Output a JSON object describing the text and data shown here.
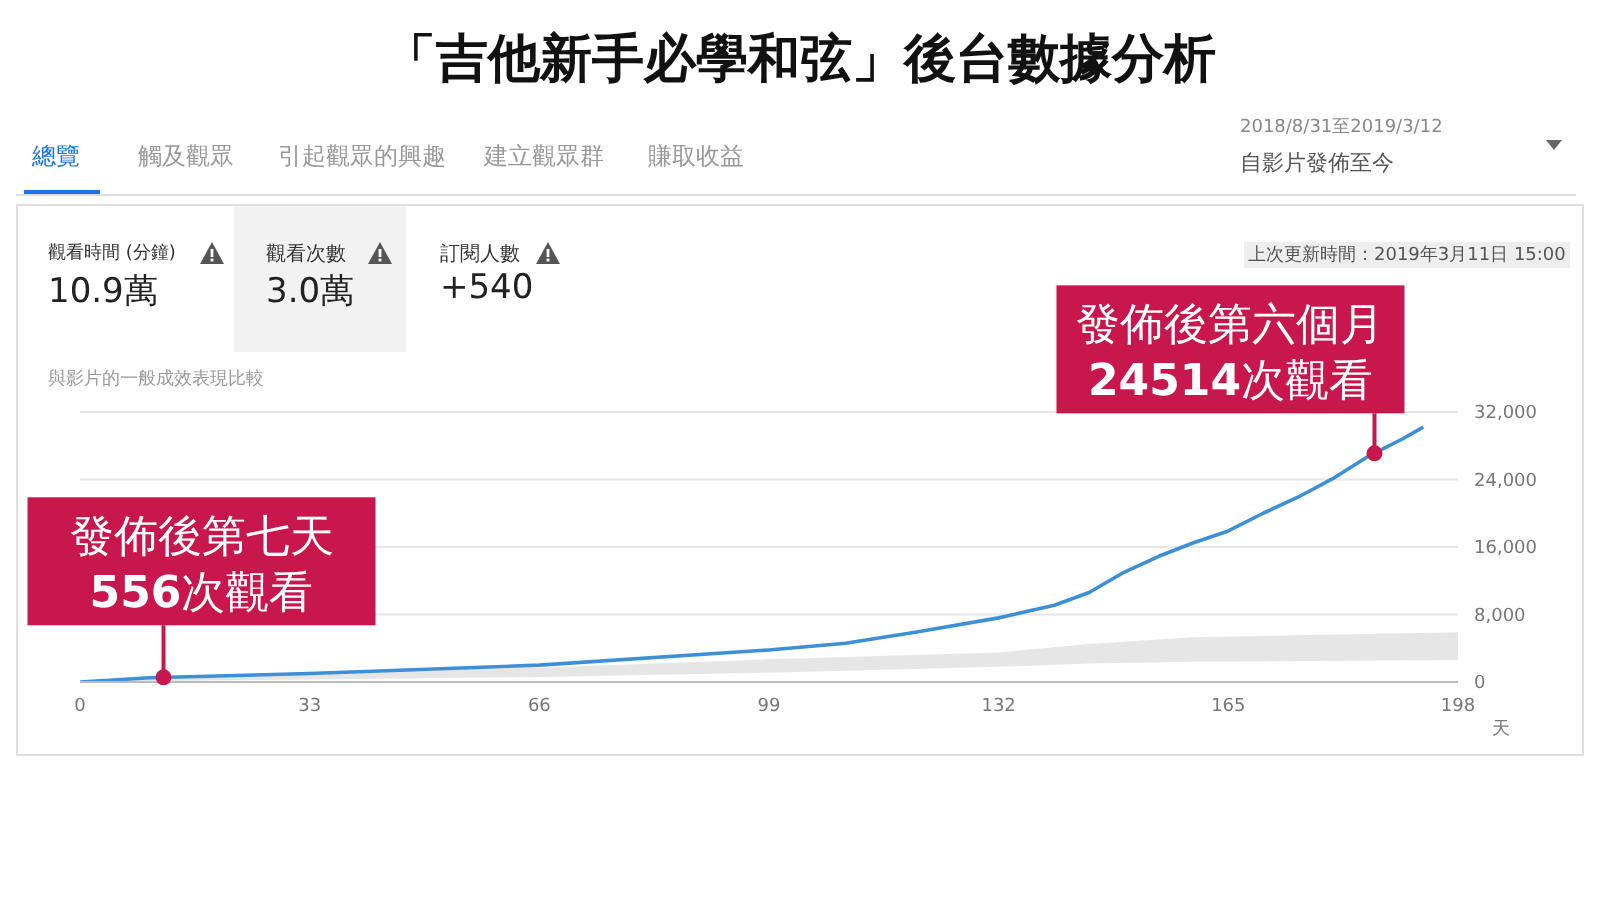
{
  "chart_data": {
    "type": "line",
    "title": "「吉他新手必學和弦」後台數據分析",
    "xlabel": "天",
    "annotations": [
      "總覽",
      "觸及觀眾",
      "引起觀眾的興趣",
      "建立觀眾群",
      "賺取收益",
      "2018/8/31至2019/3/12",
      "自影片發佈至今",
      "觀看時間 (分鐘)",
      "10.9萬",
      "觀看次數",
      "3.0萬",
      "訂閱人數",
      "+540",
      "上次更新時間：2019年3月11日 15:00",
      "與影片的一般成效表現比較",
      {
        "text": "發佈後第七天\n556次觀看",
        "x": 12,
        "y": 556
      },
      {
        "text": "發佈後第六個月\n24514次觀看",
        "x": 186,
        "y": 27100
      }
    ],
    "series": [
      {
        "type": "area",
        "color": "#e6e6e6",
        "x": [
          0,
          33,
          66,
          99,
          132,
          145,
          160,
          198
        ],
        "values": [
          0,
          1100,
          1700,
          2700,
          3500,
          4500,
          5300,
          5900
        ]
      },
      {
        "type": "area",
        "color": "#ffffff",
        "x": [
          0,
          33,
          66,
          99,
          132,
          145,
          160,
          198
        ],
        "values": [
          0,
          300,
          600,
          1100,
          1800,
          2200,
          2400,
          2600
        ]
      },
      {
        "color": "#3d8fd6",
        "x": [
          0,
          10,
          33,
          66,
          99,
          110,
          120,
          132,
          140,
          145,
          150,
          155,
          160,
          165,
          170,
          175,
          180,
          185,
          190,
          193
        ],
        "values": [
          0,
          500,
          1000,
          2000,
          3800,
          4600,
          5900,
          7600,
          9100,
          10600,
          13000,
          14900,
          16500,
          17900,
          20000,
          21900,
          24100,
          26700,
          28800,
          30200
        ]
      }
    ],
    "xlim": [
      0,
      198
    ],
    "xticks": [
      0,
      33,
      66,
      99,
      132,
      165,
      198
    ],
    "ylim": [
      0,
      32000
    ],
    "yticks": [
      0,
      {
        "value": 8000,
        "label": "8,000"
      },
      {
        "value": 16000,
        "label": "16,000"
      },
      {
        "value": 24000,
        "label": "24,000"
      },
      {
        "value": 32000,
        "label": "32,000"
      }
    ],
    "grid": "y",
    "marker": "none",
    "line_style": "solid",
    "legend": false
  }
}
